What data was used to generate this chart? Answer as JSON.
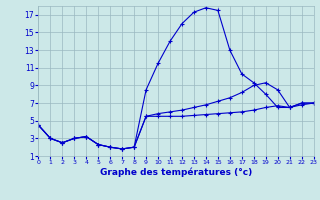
{
  "xlabel": "Graphe des températures (°c)",
  "bg_color": "#cce8e8",
  "grid_color": "#9ab8c0",
  "line_color": "#0000cc",
  "ylim": [
    1,
    18
  ],
  "yticks": [
    1,
    3,
    5,
    7,
    9,
    11,
    13,
    15,
    17
  ],
  "xlim": [
    0,
    23
  ],
  "xticks": [
    0,
    1,
    2,
    3,
    4,
    5,
    6,
    7,
    8,
    9,
    10,
    11,
    12,
    13,
    14,
    15,
    16,
    17,
    18,
    19,
    20,
    21,
    22,
    23
  ],
  "curve1_x": [
    0,
    1,
    2,
    3,
    4,
    5,
    6,
    7,
    8,
    9,
    10,
    11,
    12,
    13,
    14,
    15,
    16,
    17,
    18,
    19,
    20,
    21,
    22,
    23
  ],
  "curve1_y": [
    4.5,
    3.0,
    2.5,
    3.0,
    3.2,
    2.3,
    2.0,
    1.8,
    2.0,
    8.5,
    11.5,
    14.0,
    16.0,
    17.3,
    17.8,
    17.5,
    13.0,
    10.3,
    9.3,
    8.0,
    6.5,
    6.5,
    7.0,
    7.0
  ],
  "curve2_x": [
    0,
    1,
    2,
    3,
    4,
    5,
    6,
    7,
    8,
    9,
    10,
    11,
    12,
    13,
    14,
    15,
    16,
    17,
    18,
    19,
    20,
    21,
    22,
    23
  ],
  "curve2_y": [
    4.5,
    3.0,
    2.5,
    3.0,
    3.2,
    2.3,
    2.0,
    1.8,
    2.0,
    5.5,
    5.8,
    6.0,
    6.2,
    6.5,
    6.8,
    7.2,
    7.6,
    8.2,
    9.0,
    9.3,
    8.5,
    6.5,
    7.0,
    7.0
  ],
  "curve3_x": [
    0,
    1,
    2,
    3,
    4,
    5,
    6,
    7,
    8,
    9,
    10,
    11,
    12,
    13,
    14,
    15,
    16,
    17,
    18,
    19,
    20,
    21,
    22,
    23
  ],
  "curve3_y": [
    4.5,
    3.0,
    2.5,
    3.0,
    3.2,
    2.3,
    2.0,
    1.8,
    2.0,
    5.5,
    5.5,
    5.5,
    5.5,
    5.6,
    5.7,
    5.8,
    5.9,
    6.0,
    6.2,
    6.5,
    6.7,
    6.5,
    6.8,
    7.0
  ]
}
